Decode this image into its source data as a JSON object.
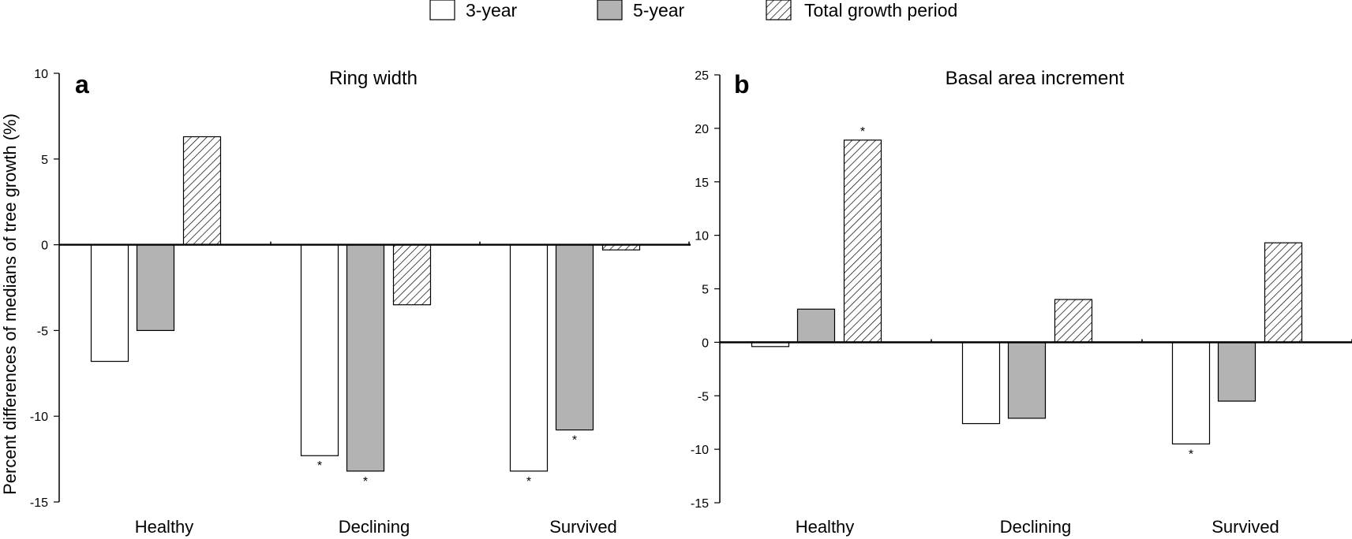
{
  "legend": {
    "items": [
      {
        "label": "3-year",
        "pattern": "white"
      },
      {
        "label": "5-year",
        "pattern": "gray"
      },
      {
        "label": "Total growth period",
        "pattern": "hatch"
      }
    ]
  },
  "y_axis_label": "Percent differences of medians of tree growth (%)",
  "colors": {
    "three_year": "#ffffff",
    "five_year": "#b3b3b3",
    "stroke": "#000000"
  },
  "chart_data": [
    {
      "type": "bar",
      "panel_label": "a",
      "title": "Ring width",
      "categories": [
        "Healthy",
        "Declining",
        "Survived"
      ],
      "ylim": [
        -15,
        10
      ],
      "yticks": [
        -15,
        -10,
        -5,
        0,
        5,
        10
      ],
      "ytick_labels": [
        "-15",
        "-10",
        "-5",
        "0",
        "5",
        "10"
      ],
      "series": [
        {
          "name": "3-year",
          "values": [
            -6.8,
            -12.3,
            -13.2
          ],
          "significant": [
            false,
            true,
            true
          ]
        },
        {
          "name": "5-year",
          "values": [
            -5.0,
            -13.2,
            -10.8
          ],
          "significant": [
            false,
            true,
            true
          ]
        },
        {
          "name": "Total growth period",
          "values": [
            6.3,
            -3.5,
            -0.3
          ],
          "significant": [
            false,
            false,
            false
          ]
        }
      ],
      "significance_marker": "*"
    },
    {
      "type": "bar",
      "panel_label": "b",
      "title": "Basal area increment",
      "categories": [
        "Healthy",
        "Declining",
        "Survived"
      ],
      "ylim": [
        -15,
        25
      ],
      "yticks": [
        -15,
        -10,
        -5,
        0,
        5,
        10,
        15,
        20,
        25
      ],
      "ytick_labels": [
        "-15",
        "-10",
        "-5",
        "0",
        "5",
        "10",
        "15",
        "20",
        "25"
      ],
      "series": [
        {
          "name": "3-year",
          "values": [
            -0.4,
            -7.6,
            -9.5
          ],
          "significant": [
            false,
            false,
            true
          ]
        },
        {
          "name": "5-year",
          "values": [
            3.1,
            -7.1,
            -5.5
          ],
          "significant": [
            false,
            false,
            false
          ]
        },
        {
          "name": "Total growth period",
          "values": [
            18.9,
            4.0,
            9.3
          ],
          "significant": [
            true,
            false,
            false
          ]
        }
      ],
      "significance_marker": "*"
    }
  ]
}
